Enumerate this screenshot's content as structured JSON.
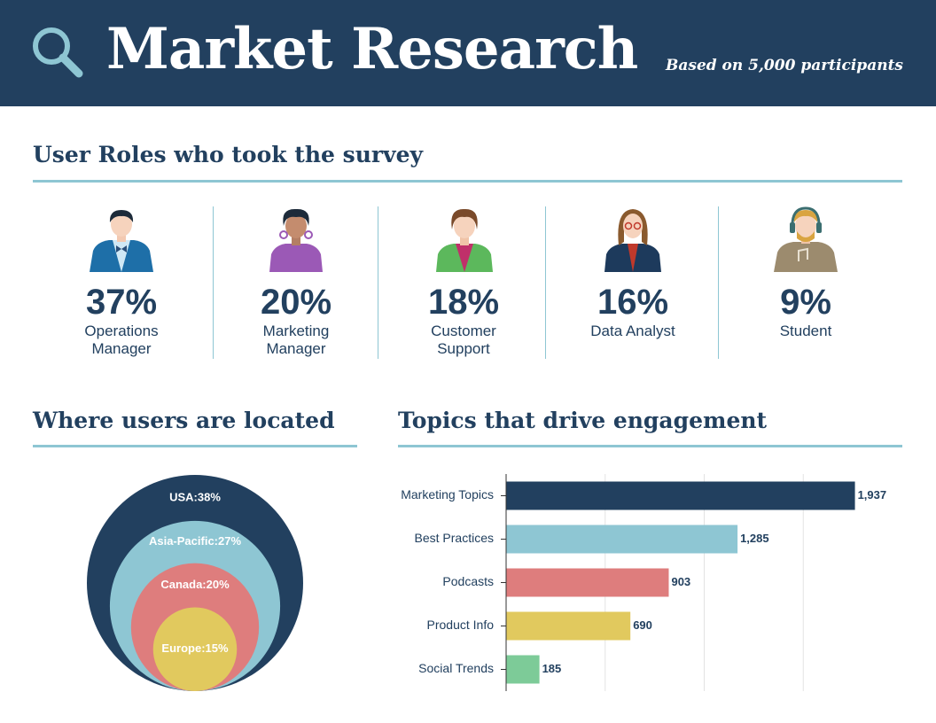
{
  "header": {
    "title": "Market Research",
    "subtitle": "Based on 5,000 participants"
  },
  "roles": {
    "heading": "User Roles who took the survey",
    "items": [
      {
        "percent": "37%",
        "label": "Operations Manager"
      },
      {
        "percent": "20%",
        "label": "Marketing Manager"
      },
      {
        "percent": "18%",
        "label": "Customer Support"
      },
      {
        "percent": "16%",
        "label": "Data Analyst"
      },
      {
        "percent": "9%",
        "label": "Student"
      }
    ]
  },
  "chart_data": [
    {
      "type": "nested-circle",
      "title": "Where users are located",
      "values": [
        38,
        27,
        20,
        15
      ],
      "value_labels": [
        "USA:38%",
        "Asia-Pacific:27%",
        "Canada:20%",
        "Europe:15%"
      ],
      "colors": [
        "#22405f",
        "#8ec6d3",
        "#de7d7d",
        "#e1c95e"
      ]
    },
    {
      "type": "hbar",
      "title": "Topics that drive engagement",
      "categories": [
        "Marketing Topics",
        "Best Practices",
        "Podcasts",
        "Product Info",
        "Social Trends"
      ],
      "values": [
        1937,
        1285,
        903,
        690,
        185
      ],
      "value_labels": [
        "1,937",
        "1,285",
        "903",
        "690",
        "185"
      ],
      "colors": [
        "#22405f",
        "#8ec6d3",
        "#de7d7d",
        "#e1c95e",
        "#7dcb98"
      ],
      "xlim": [
        0,
        2200
      ],
      "xticks": [
        0,
        550,
        1100,
        1650,
        2200
      ],
      "grid": true
    }
  ]
}
